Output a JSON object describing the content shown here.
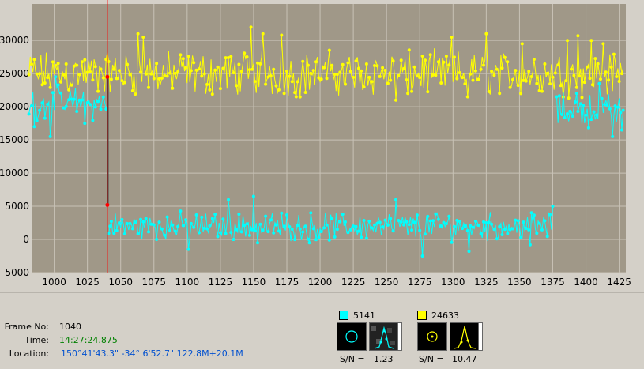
{
  "chart_data": {
    "type": "line",
    "xlim": [
      983,
      1430
    ],
    "ylim": [
      -5000,
      35500
    ],
    "x_ticks": [
      "1000",
      "1025",
      "1050",
      "1075",
      "1100",
      "1125",
      "1150",
      "1175",
      "1200",
      "1225",
      "1250",
      "1275",
      "1300",
      "1325",
      "1350",
      "1375",
      "1400",
      "1425"
    ],
    "y_ticks": [
      "30000",
      "25000",
      "20000",
      "15000",
      "10000",
      "5000",
      "0",
      "-5000"
    ],
    "grid": true,
    "cursor_frame": 1040,
    "series": [
      {
        "color": "#ffff00",
        "segments": [
          {
            "x_start": 981,
            "x_end": 1428,
            "base": 25000,
            "amp": 4000,
            "spikes": [
              [
                1063,
                31000
              ],
              [
                1067,
                30500
              ],
              [
                1148,
                32000
              ],
              [
                1157,
                31000
              ],
              [
                1171,
                30800
              ],
              [
                1173,
                22000
              ],
              [
                1182,
                21500
              ],
              [
                1257,
                21000
              ],
              [
                1266,
                22000
              ],
              [
                1299,
                30500
              ],
              [
                1311,
                21500
              ],
              [
                1325,
                31000
              ],
              [
                1352,
                29500
              ],
              [
                1386,
                30000
              ],
              [
                1394,
                30700
              ],
              [
                1404,
                30000
              ],
              [
                1413,
                29500
              ]
            ]
          }
        ]
      },
      {
        "color": "#00ffff",
        "segments": [
          {
            "x_start": 981,
            "x_end": 1039,
            "base": 20500,
            "amp": 3000,
            "spikes": [
              [
                985,
                17000
              ],
              [
                997,
                15500
              ],
              [
                1001,
                24500
              ],
              [
                1019,
                21000
              ],
              [
                1023,
                17500
              ]
            ]
          },
          {
            "x_start": 1041,
            "x_end": 1375,
            "base": 2000,
            "amp": 2500,
            "spikes": [
              [
                1042,
                2000
              ],
              [
                1101,
                -1500
              ],
              [
                1131,
                6000
              ],
              [
                1150,
                6500
              ],
              [
                1153,
                -500
              ],
              [
                1192,
                -500
              ],
              [
                1257,
                6000
              ],
              [
                1277,
                -2500
              ],
              [
                1312,
                -1800
              ],
              [
                1358,
                -800
              ],
              [
                1375,
                5000
              ]
            ]
          },
          {
            "x_start": 1378,
            "x_end": 1428,
            "base": 19500,
            "amp": 3000,
            "spikes": [
              [
                1378,
                21500
              ],
              [
                1393,
                22000
              ],
              [
                1410,
                23500
              ],
              [
                1420,
                15500
              ],
              [
                1427,
                16500
              ]
            ]
          }
        ]
      }
    ]
  },
  "info": {
    "frame_label": "Frame No:",
    "frame_value": "1040",
    "time_label": "Time:",
    "time_value": "14:27:24.875",
    "location_label": "Location:",
    "location_value": "150°41'43.3\" -34° 6'52.7\" 122.8M+20.1M"
  },
  "stars": [
    {
      "color": "#00ffff",
      "count": "5141",
      "sn_label": "S/N =",
      "sn_value": "1.23"
    },
    {
      "color": "#ffff00",
      "count": "24633",
      "sn_label": "S/N =",
      "sn_value": "10.47"
    }
  ]
}
